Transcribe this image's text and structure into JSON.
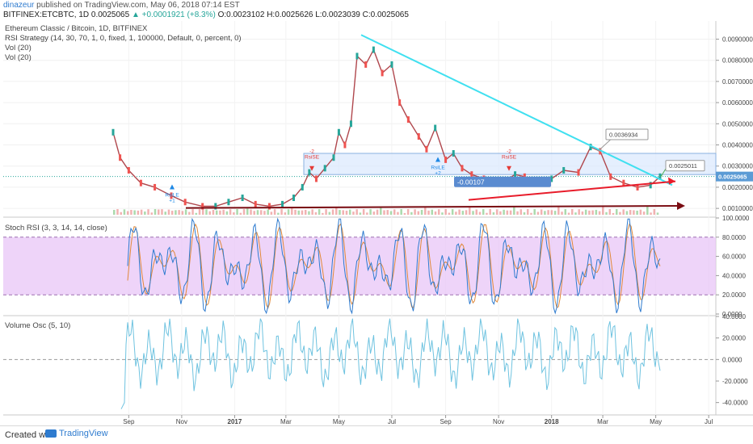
{
  "header": {
    "user": "dinazeur",
    "published": " published on TradingView.com, May 06, 2018 07:14 EST",
    "ticker": "BITFINEX:ETCBTC, 1D 0.0025065",
    "change": "▲ +0.0001921 (+8.3%)",
    "ohlc": "O:0.0023102 H:0.0025626 L:0.0023039 C:0.0025065"
  },
  "legends": {
    "l1": "Ethereum Classic / Bitcoin, 1D, BITFINEX",
    "l2": "RSI Strategy (14, 30, 70, 1, 0, fixed, 1, 100000, Default, 0, percent, 0)",
    "l3": "Vol (20)",
    "l4": "Vol (20)",
    "stoch": "Stoch RSI (3, 3, 14, 14, close)",
    "vosc": "Volume Osc (5, 10)"
  },
  "footer": {
    "created": "Created with",
    "brand": "TradingView"
  },
  "colors": {
    "up": "#26a69a",
    "down": "#ef5350",
    "trend": "#40e0f0",
    "arrow": "#e81c2a",
    "arrow2": "#7a0c12",
    "k": "#2e7bcf",
    "d": "#e0893a",
    "band": "#e8c6f7"
  },
  "chart_data": [
    {
      "type": "line",
      "title": "Ethereum Classic / Bitcoin, 1D, BITFINEX",
      "price_ticks": [
        "0.0090000",
        "0.0080000",
        "0.0070000",
        "0.0060000",
        "0.0050000",
        "0.0040000",
        "0.0030000",
        "0.0020000",
        "0.0010000"
      ],
      "last_price": "0.0025065",
      "ylim": [
        0.0007,
        0.0094
      ],
      "x_ticks": [
        "Sep",
        "Nov",
        "2017",
        "Mar",
        "May",
        "Jul",
        "Sep",
        "Nov",
        "2018",
        "Mar",
        "May",
        "Jul"
      ],
      "series": [
        {
          "x": [
            "2016-08-14",
            "2016-08-22",
            "2016-09-01",
            "2016-09-15",
            "2016-10-01",
            "2016-10-20",
            "2016-11-05",
            "2016-11-25",
            "2016-12-10",
            "2016-12-25",
            "2017-01-10",
            "2017-01-25",
            "2017-02-10",
            "2017-02-25",
            "2017-03-10",
            "2017-03-20",
            "2017-03-28",
            "2017-04-05",
            "2017-04-15",
            "2017-04-25",
            "2017-05-01",
            "2017-05-08",
            "2017-05-15",
            "2017-05-22",
            "2017-06-01",
            "2017-06-10",
            "2017-06-20",
            "2017-07-01",
            "2017-07-10",
            "2017-07-20",
            "2017-08-01",
            "2017-08-10",
            "2017-08-20",
            "2017-09-01",
            "2017-09-10",
            "2017-09-20",
            "2017-10-01",
            "2017-10-15",
            "2017-10-28",
            "2017-11-08",
            "2017-11-20",
            "2017-12-01",
            "2017-12-15",
            "2018-01-01",
            "2018-01-15",
            "2018-02-01",
            "2018-02-15",
            "2018-02-26",
            "2018-03-10",
            "2018-03-25",
            "2018-04-10",
            "2018-04-25",
            "2018-05-06"
          ],
          "values": [
            0.0046,
            0.0034,
            0.0028,
            0.0022,
            0.002,
            0.0016,
            0.0013,
            0.0011,
            0.0011,
            0.0013,
            0.0015,
            0.0012,
            0.0011,
            0.0012,
            0.0015,
            0.002,
            0.0027,
            0.0024,
            0.0029,
            0.0034,
            0.0046,
            0.004,
            0.005,
            0.0082,
            0.0078,
            0.0085,
            0.0074,
            0.0078,
            0.006,
            0.0052,
            0.0044,
            0.0038,
            0.0048,
            0.0033,
            0.0036,
            0.0029,
            0.0026,
            0.0024,
            0.0022,
            0.0023,
            0.0026,
            0.0025,
            0.0022,
            0.0024,
            0.0028,
            0.0027,
            0.0039,
            0.0037,
            0.0025,
            0.0022,
            0.002,
            0.0021,
            0.0025
          ]
        }
      ],
      "annotations": [
        {
          "text": "0.0036934"
        },
        {
          "text": "0.0025011"
        },
        {
          "text": "-0.00107"
        },
        {
          "text": "RsiSE",
          "sub": "-2"
        },
        {
          "text": "RsiSE",
          "sub": "-2"
        },
        {
          "text": "RsiLE",
          "sub": "+1"
        },
        {
          "text": "RsiLE",
          "sub": "+2"
        }
      ]
    },
    {
      "type": "line",
      "title": "Stoch RSI (3, 3, 14, 14, close)",
      "ylim": [
        0,
        100
      ],
      "y_ticks": [
        "100.0000",
        "80.0000",
        "60.0000",
        "40.0000",
        "20.0000",
        "0.0000"
      ],
      "bands": [
        20,
        80
      ]
    },
    {
      "type": "line",
      "title": "Volume Osc (5, 10)",
      "ylim": [
        -50,
        40
      ],
      "y_ticks": [
        "40.0000",
        "20.0000",
        "0.0000",
        "-20.0000",
        "-40.0000"
      ]
    }
  ]
}
